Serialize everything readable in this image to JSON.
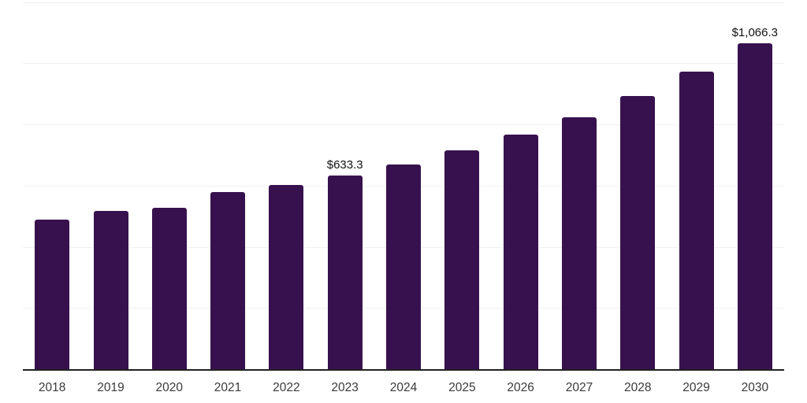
{
  "chart_data": {
    "type": "bar",
    "title": "",
    "xlabel": "",
    "ylabel": "",
    "categories": [
      "2018",
      "2019",
      "2020",
      "2021",
      "2022",
      "2023",
      "2024",
      "2025",
      "2026",
      "2027",
      "2028",
      "2029",
      "2030"
    ],
    "values": [
      490,
      516,
      527,
      578,
      601,
      633.3,
      669,
      716,
      766,
      824,
      894,
      972,
      1066.3
    ],
    "value_labels": [
      null,
      null,
      null,
      null,
      null,
      "$633.3",
      null,
      null,
      null,
      null,
      null,
      null,
      "$1,066.3"
    ],
    "ylim": [
      0,
      1200
    ],
    "gridline_step": 200,
    "grid": true,
    "legend": false,
    "y_tick_labels_shown": false,
    "colors": {
      "bar": "#37114E",
      "axis_line": "#212121",
      "gridline": "#f1f1f4",
      "tick_label": "#3a3a3a",
      "data_label": "#111111"
    }
  }
}
